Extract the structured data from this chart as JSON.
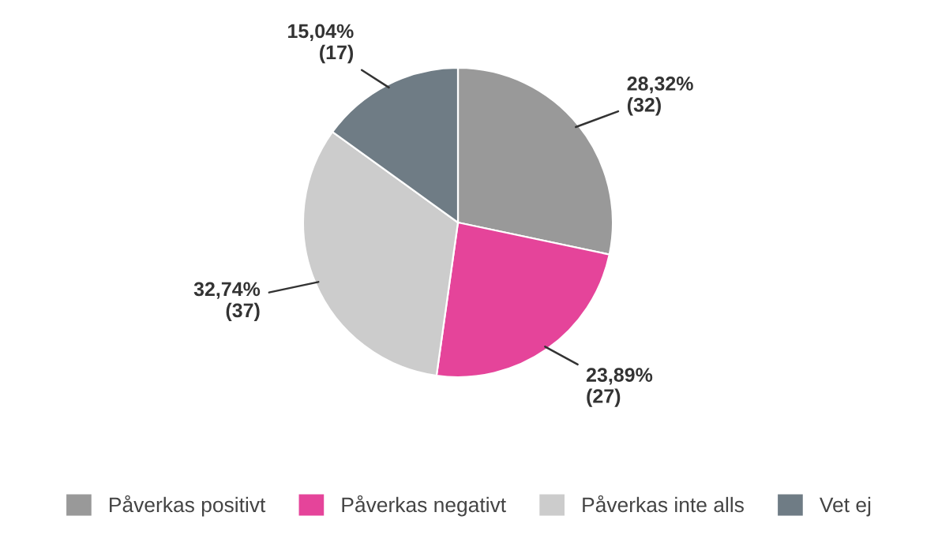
{
  "chart_data": {
    "type": "pie",
    "categories": [
      "Påverkas positivt",
      "Påverkas negativt",
      "Påverkas inte alls",
      "Vet ej"
    ],
    "values": [
      32,
      27,
      37,
      17
    ],
    "value_labels": [
      "28,32%\n(32)",
      "23,89%\n(27)",
      "32,74%\n(37)",
      "15,04%\n(17)"
    ],
    "colors": [
      "#999999",
      "#e5449a",
      "#cccccc",
      "#6f7c85"
    ],
    "legend": "bottom"
  }
}
